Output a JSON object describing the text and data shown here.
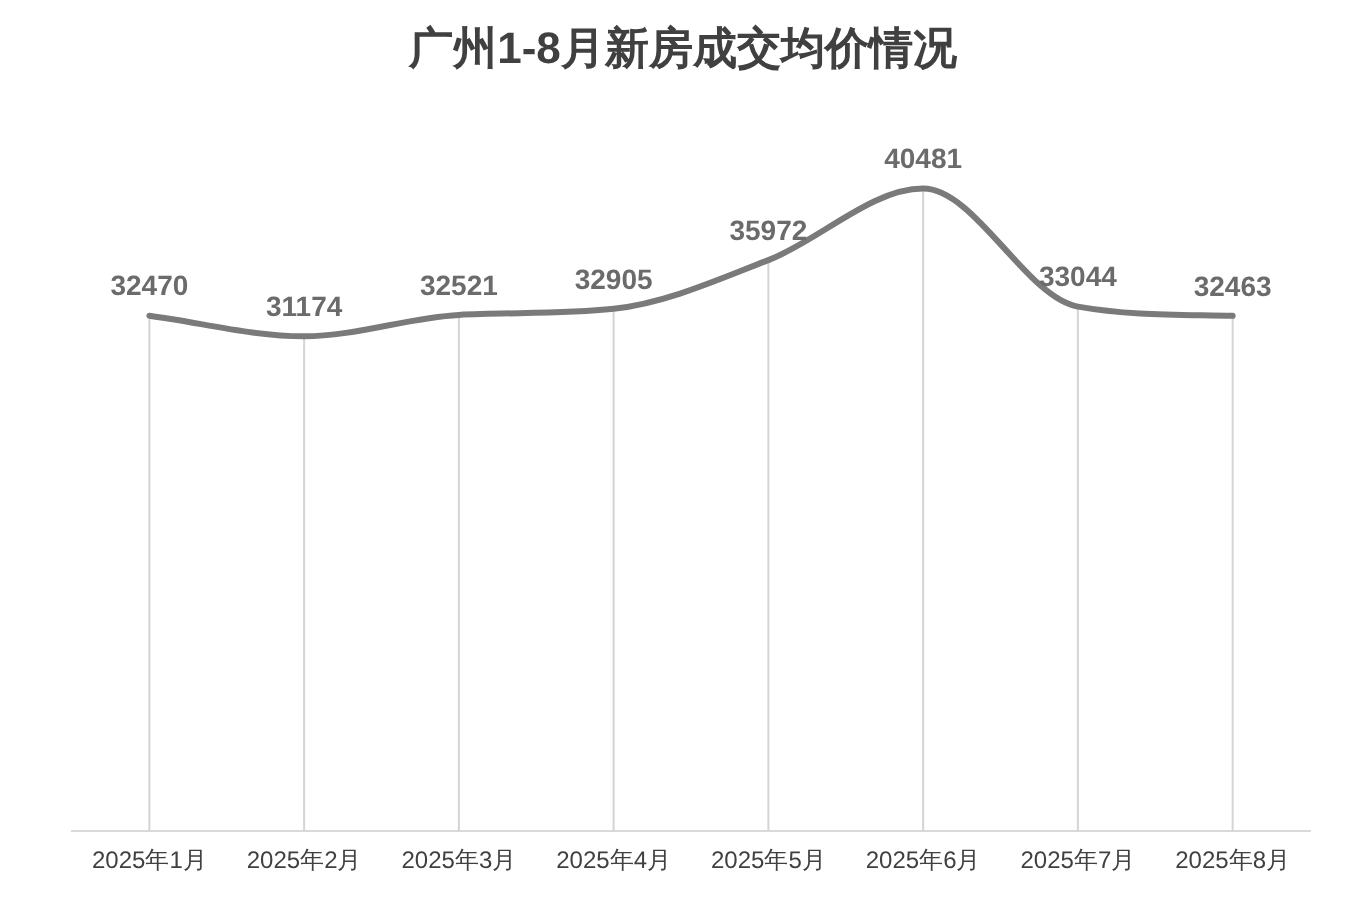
{
  "chart_data": {
    "type": "line",
    "title": "广州1-8月新房成交均价情况",
    "categories": [
      "2025年1月",
      "2025年2月",
      "2025年3月",
      "2025年4月",
      "2025年5月",
      "2025年6月",
      "2025年7月",
      "2025年8月"
    ],
    "series": [
      {
        "color": "#7a7a7a",
        "values": [
          32470,
          31174,
          32521,
          32905,
          35972,
          40481,
          33044,
          32463
        ]
      }
    ],
    "data_labels": true,
    "grid": "x",
    "legend": false,
    "line_style": "solid",
    "tick_labels": "x"
  }
}
